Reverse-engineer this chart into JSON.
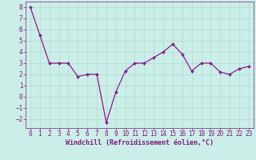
{
  "x": [
    0,
    1,
    2,
    3,
    4,
    5,
    6,
    7,
    8,
    9,
    10,
    11,
    12,
    13,
    14,
    15,
    16,
    17,
    18,
    19,
    20,
    21,
    22,
    23
  ],
  "y": [
    8,
    5.5,
    3,
    3,
    3,
    1.8,
    2,
    2,
    -2.3,
    0.4,
    2.3,
    3,
    3,
    3.5,
    4,
    4.7,
    3.8,
    2.3,
    3,
    3,
    2.2,
    2,
    2.5,
    2.7
  ],
  "line_color": "#8b1a8b",
  "marker": "D",
  "marker_size": 2.0,
  "bg_color": "#cceee8",
  "grid_color": "#aaddcc",
  "xlabel": "Windchill (Refroidissement éolien,°C)",
  "xlabel_color": "#7b1a7b",
  "tick_color": "#7b1a7b",
  "ylim": [
    -2.8,
    8.5
  ],
  "xlim": [
    -0.5,
    23.5
  ],
  "yticks": [
    -2,
    -1,
    0,
    1,
    2,
    3,
    4,
    5,
    6,
    7,
    8
  ],
  "xticks": [
    0,
    1,
    2,
    3,
    4,
    5,
    6,
    7,
    8,
    9,
    10,
    11,
    12,
    13,
    14,
    15,
    16,
    17,
    18,
    19,
    20,
    21,
    22,
    23
  ],
  "line_width": 0.9,
  "font_size": 5.5,
  "xlabel_fontsize": 6.0
}
